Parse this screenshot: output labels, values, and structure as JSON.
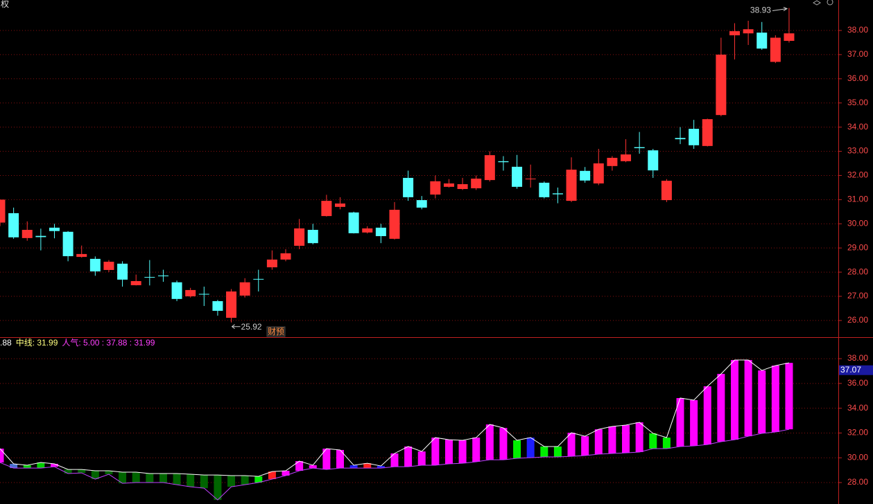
{
  "corner_label": "权",
  "chart_data": [
    {
      "type": "candlestick",
      "up_color": "#ff3232",
      "down_color": "#54ffff",
      "grid": true,
      "ylim": [
        25.31,
        39.26
      ],
      "yticks": [
        {
          "value": 26,
          "label": "26.00"
        },
        {
          "value": 27,
          "label": "27.00"
        },
        {
          "value": 28,
          "label": "28.00"
        },
        {
          "value": 29,
          "label": "29.00"
        },
        {
          "value": 30,
          "label": "30.00"
        },
        {
          "value": 31,
          "label": "31.00"
        },
        {
          "value": 32,
          "label": "32.00"
        },
        {
          "value": 33,
          "label": "33.00"
        },
        {
          "value": 34,
          "label": "34.00"
        },
        {
          "value": 35,
          "label": "35.00"
        },
        {
          "value": 36,
          "label": "36.00"
        },
        {
          "value": 37,
          "label": "37.00"
        },
        {
          "value": 38,
          "label": "38.00"
        }
      ],
      "open": [
        30.05,
        30.44,
        29.41,
        29.5,
        29.84,
        29.67,
        28.63,
        28.55,
        28.09,
        28.35,
        27.46,
        27.8,
        27.86,
        27.58,
        27.0,
        27.1,
        26.8,
        26.11,
        27.03,
        27.72,
        28.2,
        28.52,
        29.09,
        29.75,
        30.32,
        30.7,
        30.47,
        29.64,
        29.84,
        29.38,
        31.9,
        30.98,
        31.21,
        31.53,
        31.44,
        31.47,
        31.81,
        32.59,
        32.36,
        31.85,
        31.7,
        31.26,
        30.95,
        32.19,
        31.67,
        32.39,
        32.59,
        33.17,
        33.04,
        30.98,
        33.55,
        33.93,
        33.22,
        34.5,
        37.8,
        37.88,
        37.91,
        36.7,
        37.57
      ],
      "high": [
        31.0,
        30.67,
        30.1,
        29.8,
        30.0,
        29.7,
        29.1,
        28.65,
        28.5,
        28.45,
        27.9,
        28.5,
        28.1,
        27.65,
        27.35,
        27.4,
        26.85,
        27.3,
        27.75,
        28.1,
        28.9,
        28.95,
        30.2,
        30.0,
        31.2,
        31.1,
        30.5,
        29.9,
        30.0,
        30.9,
        32.2,
        31.15,
        32.0,
        31.85,
        31.9,
        32.0,
        33.0,
        32.8,
        32.85,
        32.45,
        31.75,
        31.5,
        32.75,
        32.35,
        33.1,
        32.8,
        33.5,
        33.8,
        33.1,
        31.85,
        34.0,
        34.3,
        34.35,
        37.7,
        38.3,
        38.4,
        38.35,
        37.8,
        38.93
      ],
      "low": [
        29.9,
        29.38,
        29.3,
        28.9,
        29.4,
        28.45,
        28.6,
        27.85,
        28.0,
        27.4,
        27.45,
        27.45,
        27.6,
        26.8,
        26.95,
        26.6,
        26.2,
        25.92,
        26.95,
        27.2,
        28.1,
        28.45,
        28.95,
        29.15,
        30.3,
        30.6,
        29.6,
        29.6,
        29.2,
        29.35,
        30.95,
        30.6,
        31.05,
        31.5,
        31.4,
        31.4,
        31.75,
        32.2,
        31.45,
        31.5,
        31.05,
        30.85,
        30.9,
        31.7,
        31.6,
        32.2,
        32.55,
        32.9,
        31.9,
        30.9,
        33.3,
        33.1,
        33.2,
        34.45,
        36.8,
        37.4,
        37.2,
        36.65,
        37.5
      ],
      "close": [
        31.0,
        29.44,
        29.75,
        29.45,
        29.7,
        28.66,
        28.75,
        28.03,
        28.43,
        27.69,
        27.63,
        27.78,
        27.83,
        26.89,
        27.26,
        27.08,
        26.4,
        27.2,
        27.58,
        27.7,
        28.52,
        28.78,
        29.81,
        29.2,
        30.95,
        30.84,
        29.61,
        29.81,
        29.49,
        30.58,
        31.1,
        30.67,
        31.76,
        31.67,
        31.64,
        31.87,
        32.84,
        32.55,
        31.53,
        31.87,
        31.1,
        31.22,
        32.24,
        31.79,
        32.5,
        32.73,
        32.87,
        33.13,
        32.21,
        31.78,
        33.5,
        33.25,
        34.33,
        37.0,
        37.97,
        38.05,
        37.25,
        37.7,
        37.88
      ],
      "max_label": "38.93",
      "min_label": "25.92",
      "event_label": "财预"
    },
    {
      "type": "range_bar",
      "grid": true,
      "ylim": [
        26.27,
        39.68
      ],
      "yticks": [
        {
          "value": 28,
          "label": "28.00"
        },
        {
          "value": 30,
          "label": "30.00"
        },
        {
          "value": 32,
          "label": "32.00"
        },
        {
          "value": 34,
          "label": "34.00"
        },
        {
          "value": 36,
          "label": "36.00"
        },
        {
          "value": 38,
          "label": "38.00"
        }
      ],
      "legend_items": [
        ".88",
        "中线: 31.99",
        "人气: 5.00 : 37.88 : 31.99"
      ],
      "current_value": 37.07,
      "upper_line_color": "#ffffff",
      "lower_line_color": "#c040ff",
      "high": [
        30.74,
        29.51,
        29.4,
        29.62,
        29.51,
        29.06,
        29.06,
        28.95,
        28.95,
        28.84,
        28.84,
        28.73,
        28.73,
        28.73,
        28.67,
        28.61,
        28.61,
        28.56,
        28.56,
        28.5,
        28.89,
        28.95,
        29.73,
        29.4,
        30.74,
        30.63,
        29.4,
        29.56,
        29.34,
        30.35,
        30.91,
        30.51,
        31.63,
        31.46,
        31.41,
        31.63,
        32.69,
        32.41,
        31.41,
        31.63,
        30.91,
        30.91,
        32.02,
        31.74,
        32.3,
        32.53,
        32.64,
        32.86,
        31.97,
        31.63,
        34.82,
        34.65,
        35.77,
        36.77,
        37.89,
        37.89,
        37.05,
        37.44,
        37.66
      ],
      "low": [
        29.62,
        29.17,
        29.17,
        29.17,
        29.28,
        28.73,
        28.78,
        28.28,
        28.67,
        27.94,
        28.0,
        28.0,
        28.0,
        27.83,
        27.66,
        27.55,
        26.6,
        27.66,
        27.83,
        28.0,
        28.28,
        28.56,
        28.95,
        29.17,
        29.06,
        29.17,
        29.17,
        29.17,
        29.17,
        29.28,
        29.28,
        29.4,
        29.4,
        29.51,
        29.56,
        29.68,
        29.84,
        29.84,
        29.96,
        30.01,
        30.07,
        30.07,
        30.12,
        30.18,
        30.29,
        30.35,
        30.4,
        30.46,
        30.74,
        30.74,
        30.91,
        30.96,
        31.07,
        31.3,
        31.46,
        31.74,
        31.97,
        32.08,
        32.3
      ],
      "colors": [
        "#ff00ff",
        "#4a70d0",
        "#00cc00",
        "#00cc00",
        "#ff00ff",
        "#006400",
        "#006400",
        "#006400",
        "#006400",
        "#006400",
        "#006400",
        "#006400",
        "#006400",
        "#006400",
        "#006400",
        "#006400",
        "#006400",
        "#006400",
        "#006400",
        "#00ee00",
        "#ff2020",
        "#ff00ff",
        "#ff00ff",
        "#ff00ff",
        "#ff00ff",
        "#ff00ff",
        "#1e1eff",
        "#ff2020",
        "#1e1eff",
        "#ff00ff",
        "#ff00ff",
        "#ff00ff",
        "#ff00ff",
        "#ff00ff",
        "#ff00ff",
        "#ff00ff",
        "#ff00ff",
        "#ff00ff",
        "#00ee00",
        "#1e1eff",
        "#00ee00",
        "#00ee00",
        "#ff00ff",
        "#ff00ff",
        "#ff00ff",
        "#ff00ff",
        "#ff00ff",
        "#ff00ff",
        "#00ee00",
        "#00ee00",
        "#ff00ff",
        "#ff00ff",
        "#ff00ff",
        "#ff00ff",
        "#ff00ff",
        "#ff00ff",
        "#ff00ff",
        "#ff00ff",
        "#ff00ff"
      ]
    }
  ]
}
